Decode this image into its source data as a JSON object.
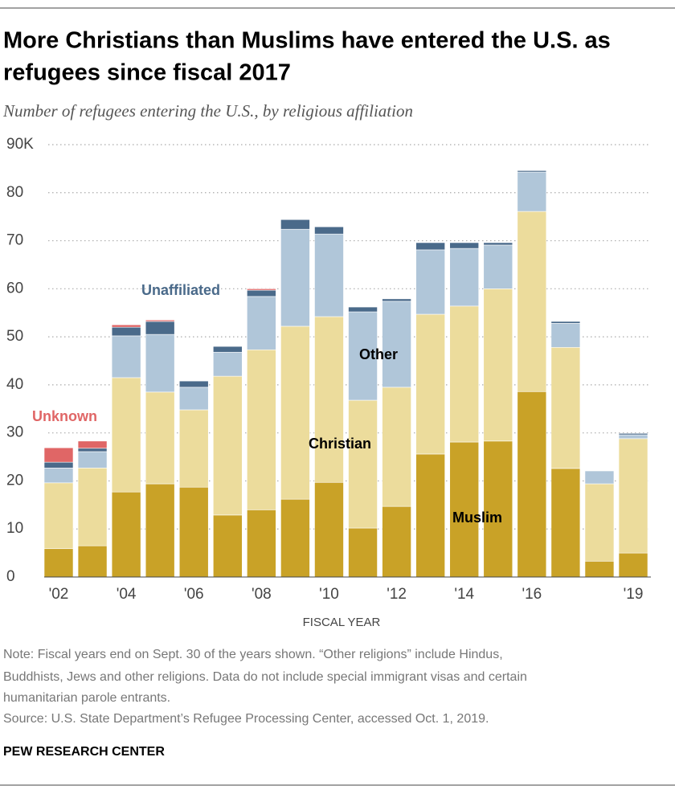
{
  "chart_data": {
    "type": "stacked_bar",
    "title": [
      "More Christians than Muslims have entered the U.S. as",
      "refugees since fiscal 2017"
    ],
    "subtitle": "Number of refugees entering the U.S., by religious affiliation",
    "x_label": "FISCAL YEAR",
    "categories": [
      "'02",
      null,
      "'04",
      null,
      "'06",
      null,
      "'08",
      null,
      "'10",
      null,
      "'12",
      null,
      "'14",
      null,
      "'16",
      null,
      null,
      "'19"
    ],
    "series": [
      {
        "name": "Muslim",
        "color": "#c9a227",
        "values": [
          5.9,
          6.5,
          17.7,
          19.4,
          18.7,
          12.9,
          14.0,
          16.2,
          19.7,
          10.2,
          14.7,
          25.6,
          28.1,
          28.3,
          38.6,
          22.6,
          3.3,
          5.0
        ]
      },
      {
        "name": "Christian",
        "color": "#ecdc9c",
        "values": [
          13.7,
          16.2,
          23.8,
          19.1,
          16.1,
          28.9,
          33.3,
          36.0,
          34.5,
          26.6,
          24.8,
          29.1,
          28.3,
          31.7,
          37.5,
          25.2,
          16.1,
          23.8
        ]
      },
      {
        "name": "Other",
        "color": "#b0c6d9",
        "values": [
          3.1,
          3.4,
          8.7,
          12.0,
          4.7,
          5.0,
          11.1,
          20.2,
          17.2,
          18.4,
          17.9,
          13.4,
          12.0,
          9.1,
          8.2,
          5.0,
          2.7,
          0.8
        ]
      },
      {
        "name": "Unaffiliated",
        "color": "#4a6a8a",
        "values": [
          1.2,
          0.7,
          1.8,
          2.7,
          1.3,
          1.2,
          1.3,
          2.0,
          1.5,
          1.0,
          0.5,
          1.5,
          1.2,
          0.5,
          0.3,
          0.4,
          0.1,
          0.3
        ]
      },
      {
        "name": "Unknown",
        "color": "#e06666",
        "values": [
          3.0,
          1.5,
          0.5,
          0.3,
          null,
          null,
          0.3,
          null,
          null,
          null,
          null,
          null,
          null,
          null,
          null,
          null,
          null,
          null
        ]
      }
    ],
    "ylim": [
      0,
      90
    ],
    "yticks": [
      0,
      10,
      20,
      30,
      40,
      50,
      60,
      70,
      80,
      {
        "value": 90,
        "label": "90K"
      }
    ],
    "grid": true,
    "note": [
      "Note: Fiscal years end on Sept. 30 of the years shown. “Other religions” include Hindus,",
      "Buddhists, Jews and other religions. Data do not include special immigrant visas and certain",
      "humanitarian parole entrants."
    ],
    "source": "Source: U.S. State Department’s Refugee Processing Center, accessed Oct. 1, 2019.",
    "brand": "PEW RESEARCH CENTER"
  }
}
